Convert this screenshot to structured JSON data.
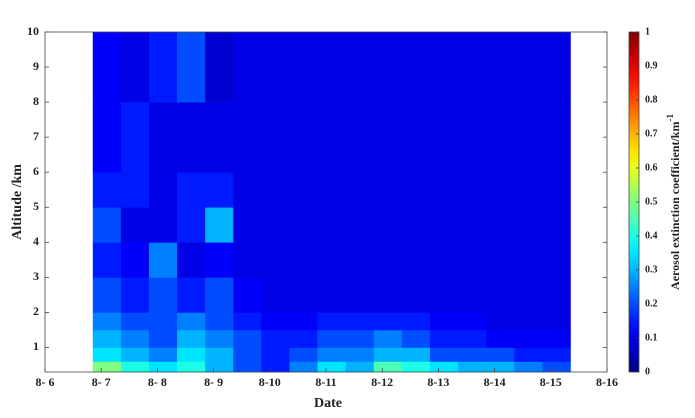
{
  "chart_data": {
    "type": "heatmap",
    "x_label": "Date",
    "y_label": "Altitude /km",
    "colorbar_label": "Aerosol extinction coefficient/km",
    "colorbar_label_superscript": "-1",
    "colormap": "jet",
    "xlim": [
      6,
      16
    ],
    "xticks": [
      {
        "value": 6,
        "label": "8- 6"
      },
      {
        "value": 7,
        "label": "8- 7"
      },
      {
        "value": 8,
        "label": "8- 8"
      },
      {
        "value": 9,
        "label": "8- 9"
      },
      {
        "value": 10,
        "label": "8-10"
      },
      {
        "value": 11,
        "label": "8-11"
      },
      {
        "value": 12,
        "label": "8-12"
      },
      {
        "value": 13,
        "label": "8-13"
      },
      {
        "value": 14,
        "label": "8-14"
      },
      {
        "value": 15,
        "label": "8-15"
      },
      {
        "value": 16,
        "label": "8-16"
      }
    ],
    "ylim": [
      0.3,
      10
    ],
    "yticks": [
      1,
      2,
      3,
      4,
      5,
      6,
      7,
      8,
      9,
      10
    ],
    "clim": [
      0,
      1
    ],
    "cticks": [
      0,
      0.1,
      0.2,
      0.3,
      0.4,
      0.5,
      0.6,
      0.7,
      0.8,
      0.9,
      1
    ],
    "x_edges": [
      6.85,
      7.35,
      7.85,
      8.35,
      8.85,
      9.35,
      9.85,
      10.35,
      10.85,
      11.35,
      11.85,
      12.35,
      12.85,
      13.35,
      13.85,
      14.35,
      14.85,
      15.35
    ],
    "y_edges": [
      0.3,
      0.6,
      1,
      1.5,
      2,
      3,
      4,
      5,
      6,
      8,
      10
    ],
    "z": [
      [
        0.5,
        0.4,
        0.35,
        0.4,
        0.3,
        0.2,
        0.15,
        0.25,
        0.35,
        0.3,
        0.45,
        0.4,
        0.35,
        0.3,
        0.3,
        0.25,
        0.2
      ],
      [
        0.35,
        0.3,
        0.25,
        0.35,
        0.3,
        0.2,
        0.15,
        0.2,
        0.25,
        0.25,
        0.3,
        0.3,
        0.2,
        0.2,
        0.2,
        0.15,
        0.15
      ],
      [
        0.3,
        0.25,
        0.2,
        0.3,
        0.25,
        0.2,
        0.15,
        0.15,
        0.2,
        0.2,
        0.25,
        0.2,
        0.15,
        0.15,
        0.12,
        0.12,
        0.12
      ],
      [
        0.25,
        0.2,
        0.2,
        0.25,
        0.2,
        0.15,
        0.12,
        0.12,
        0.15,
        0.15,
        0.15,
        0.15,
        0.12,
        0.12,
        0.1,
        0.1,
        0.1
      ],
      [
        0.2,
        0.15,
        0.2,
        0.15,
        0.2,
        0.12,
        0.1,
        0.1,
        0.1,
        0.1,
        0.1,
        0.1,
        0.1,
        0.1,
        0.1,
        0.1,
        0.1
      ],
      [
        0.15,
        0.12,
        0.25,
        0.1,
        0.12,
        0.1,
        0.1,
        0.1,
        0.1,
        0.1,
        0.1,
        0.1,
        0.1,
        0.1,
        0.1,
        0.1,
        0.1
      ],
      [
        0.2,
        0.1,
        0.1,
        0.15,
        0.3,
        0.1,
        0.1,
        0.1,
        0.1,
        0.1,
        0.1,
        0.1,
        0.1,
        0.1,
        0.1,
        0.1,
        0.1
      ],
      [
        0.15,
        0.15,
        0.1,
        0.15,
        0.15,
        0.1,
        0.1,
        0.1,
        0.1,
        0.1,
        0.1,
        0.1,
        0.1,
        0.1,
        0.1,
        0.1,
        0.1
      ],
      [
        0.12,
        0.15,
        0.1,
        0.1,
        0.1,
        0.1,
        0.1,
        0.1,
        0.1,
        0.1,
        0.1,
        0.1,
        0.1,
        0.1,
        0.1,
        0.1,
        0.1
      ],
      [
        0.12,
        0.1,
        0.15,
        0.2,
        0.08,
        0.1,
        0.1,
        0.1,
        0.1,
        0.1,
        0.1,
        0.1,
        0.1,
        0.1,
        0.1,
        0.1,
        0.1
      ]
    ]
  }
}
